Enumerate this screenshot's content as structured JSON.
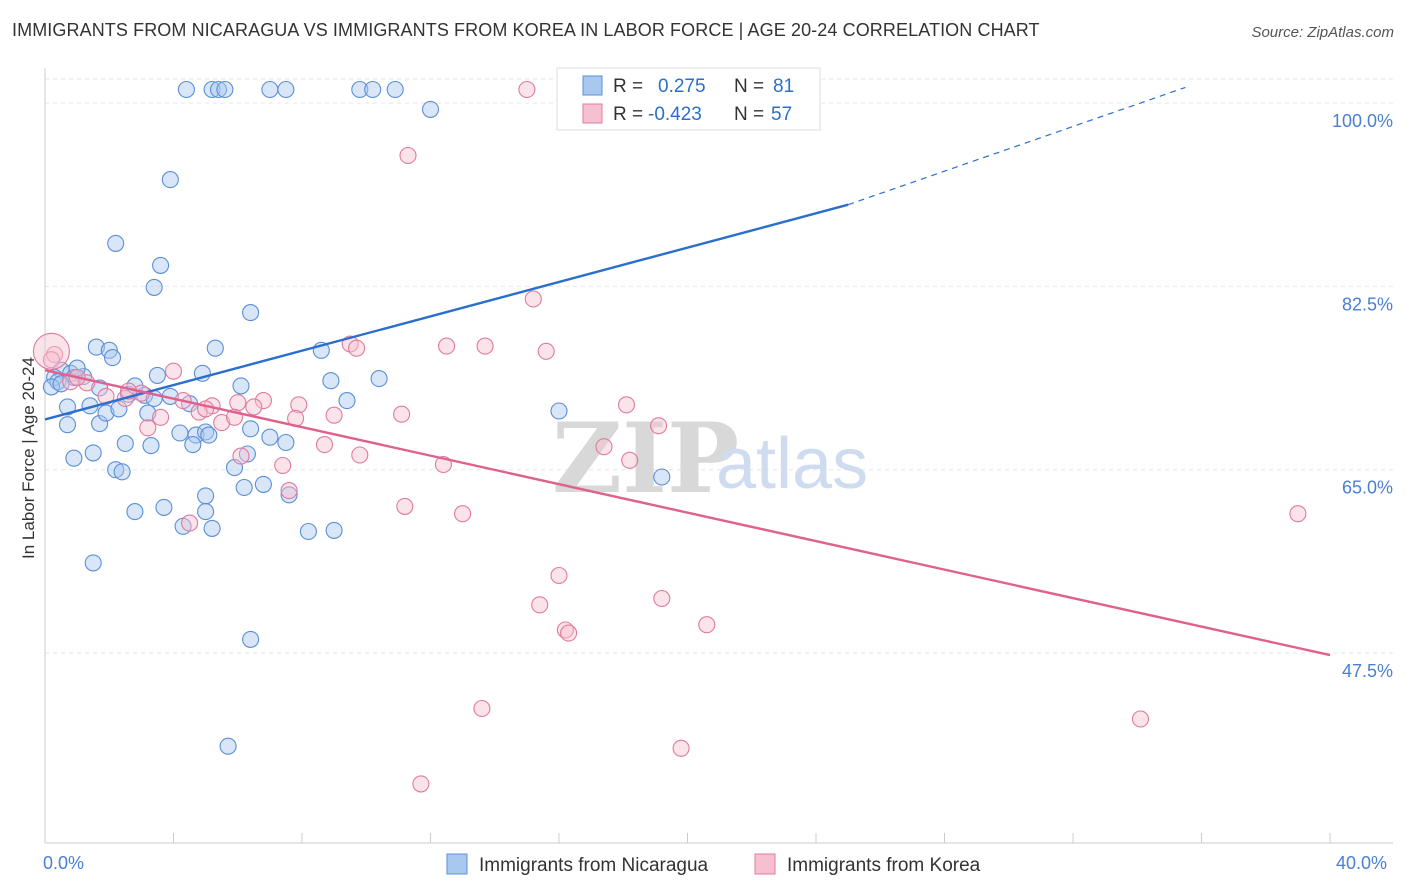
{
  "title": "IMMIGRANTS FROM NICARAGUA VS IMMIGRANTS FROM KOREA IN LABOR FORCE | AGE 20-24 CORRELATION CHART",
  "source": "Source: ZipAtlas.com",
  "watermark": {
    "zip": "ZIP",
    "atlas": "atlas"
  },
  "chart_data": {
    "type": "scatter",
    "xlabel": "",
    "ylabel": "In Labor Force | Age 20-24",
    "xlim": [
      0,
      40
    ],
    "ylim": [
      32,
      103.5
    ],
    "x_tick_labels": [
      "0.0%",
      "40.0%"
    ],
    "y_ticks": [
      47.5,
      65.0,
      82.5,
      100.0
    ],
    "y_tick_labels": [
      "47.5%",
      "65.0%",
      "82.5%",
      "100.0%"
    ],
    "grid": true,
    "legend_position": "top-center",
    "stats": [
      {
        "r_label": "R =",
        "r_value": "0.275",
        "n_label": "N =",
        "n_value": "81"
      },
      {
        "r_label": "R =",
        "r_value": "-0.423",
        "n_label": "N =",
        "n_value": "57"
      }
    ],
    "series": [
      {
        "name": "Immigrants from Nicaragua",
        "color": "#a8c8f0",
        "stroke": "#5b8fd8",
        "trend": {
          "x0": 0,
          "y0": 69.8,
          "x1": 25,
          "y1": 90.3,
          "x_dash_end": 35.5,
          "y_dash_end": 101.5,
          "color": "#2a6fce"
        },
        "points": [
          [
            4.4,
            101.3
          ],
          [
            5.2,
            101.3
          ],
          [
            5.4,
            101.3
          ],
          [
            5.6,
            101.3
          ],
          [
            7.0,
            101.3
          ],
          [
            7.5,
            101.3
          ],
          [
            9.8,
            101.3
          ],
          [
            10.2,
            101.3
          ],
          [
            10.9,
            101.3
          ],
          [
            12.0,
            99.4
          ],
          [
            3.9,
            92.7
          ],
          [
            2.2,
            86.6
          ],
          [
            3.6,
            84.5
          ],
          [
            3.4,
            82.4
          ],
          [
            6.4,
            80.0
          ],
          [
            1.6,
            76.7
          ],
          [
            2.0,
            76.4
          ],
          [
            5.3,
            76.6
          ],
          [
            2.1,
            75.7
          ],
          [
            8.6,
            76.4
          ],
          [
            0.5,
            74.5
          ],
          [
            0.8,
            74.2
          ],
          [
            0.3,
            73.8
          ],
          [
            1.2,
            73.9
          ],
          [
            4.9,
            74.2
          ],
          [
            0.4,
            73.4
          ],
          [
            0.9,
            73.8
          ],
          [
            6.1,
            73.0
          ],
          [
            3.5,
            74.0
          ],
          [
            8.9,
            73.5
          ],
          [
            10.4,
            73.7
          ],
          [
            1.7,
            72.8
          ],
          [
            2.6,
            72.2
          ],
          [
            3.1,
            72.1
          ],
          [
            3.4,
            71.8
          ],
          [
            9.4,
            71.6
          ],
          [
            0.7,
            71.0
          ],
          [
            1.4,
            71.1
          ],
          [
            3.2,
            70.4
          ],
          [
            1.7,
            69.4
          ],
          [
            0.7,
            69.3
          ],
          [
            4.2,
            68.5
          ],
          [
            4.7,
            68.3
          ],
          [
            5.0,
            68.6
          ],
          [
            5.1,
            68.3
          ],
          [
            6.4,
            68.9
          ],
          [
            7.0,
            68.1
          ],
          [
            2.5,
            67.5
          ],
          [
            3.3,
            67.3
          ],
          [
            1.5,
            66.6
          ],
          [
            4.6,
            67.4
          ],
          [
            6.3,
            66.5
          ],
          [
            0.9,
            66.1
          ],
          [
            2.2,
            65.0
          ],
          [
            2.4,
            64.8
          ],
          [
            5.9,
            65.2
          ],
          [
            6.8,
            63.6
          ],
          [
            5.0,
            62.5
          ],
          [
            7.6,
            62.6
          ],
          [
            2.8,
            61.0
          ],
          [
            3.7,
            61.4
          ],
          [
            5.0,
            61.0
          ],
          [
            4.3,
            59.6
          ],
          [
            5.2,
            59.4
          ],
          [
            8.2,
            59.1
          ],
          [
            9.0,
            59.2
          ],
          [
            1.5,
            56.1
          ],
          [
            6.4,
            48.8
          ],
          [
            5.7,
            38.6
          ],
          [
            16.0,
            70.6
          ],
          [
            19.2,
            64.3
          ],
          [
            7.5,
            67.6
          ],
          [
            6.2,
            63.3
          ],
          [
            1.9,
            70.4
          ],
          [
            2.8,
            73.0
          ],
          [
            0.2,
            72.9
          ],
          [
            1.0,
            74.7
          ],
          [
            0.5,
            73.2
          ],
          [
            3.9,
            72.0
          ],
          [
            2.3,
            70.8
          ],
          [
            4.5,
            71.3
          ]
        ]
      },
      {
        "name": "Immigrants from Korea",
        "color": "#f7c0d0",
        "stroke": "#e07b9e",
        "trend": {
          "x0": 0,
          "y0": 74.5,
          "x1": 40,
          "y1": 47.3,
          "color": "#e0608e"
        },
        "points": [
          [
            15.0,
            101.3
          ],
          [
            11.3,
            95.0
          ],
          [
            15.2,
            81.3
          ],
          [
            9.5,
            77.0
          ],
          [
            9.7,
            76.6
          ],
          [
            12.5,
            76.8
          ],
          [
            13.7,
            76.8
          ],
          [
            15.6,
            76.3
          ],
          [
            0.3,
            76.0
          ],
          [
            4.0,
            74.4
          ],
          [
            0.8,
            73.4
          ],
          [
            1.3,
            73.3
          ],
          [
            1.9,
            72.0
          ],
          [
            2.5,
            71.8
          ],
          [
            3.0,
            72.3
          ],
          [
            4.3,
            71.6
          ],
          [
            5.2,
            71.1
          ],
          [
            6.0,
            71.4
          ],
          [
            6.8,
            71.6
          ],
          [
            7.9,
            71.2
          ],
          [
            9.0,
            70.2
          ],
          [
            11.1,
            70.3
          ],
          [
            18.1,
            71.2
          ],
          [
            5.5,
            69.5
          ],
          [
            3.2,
            69.0
          ],
          [
            4.8,
            70.5
          ],
          [
            5.9,
            70.0
          ],
          [
            7.8,
            69.9
          ],
          [
            19.1,
            69.2
          ],
          [
            8.7,
            67.4
          ],
          [
            12.4,
            65.5
          ],
          [
            17.4,
            67.2
          ],
          [
            18.2,
            65.9
          ],
          [
            9.8,
            66.4
          ],
          [
            6.1,
            66.3
          ],
          [
            7.4,
            65.4
          ],
          [
            11.2,
            61.5
          ],
          [
            13.0,
            60.8
          ],
          [
            7.6,
            63.0
          ],
          [
            4.5,
            59.9
          ],
          [
            16.0,
            54.9
          ],
          [
            15.4,
            52.1
          ],
          [
            16.2,
            49.7
          ],
          [
            16.3,
            49.4
          ],
          [
            19.2,
            52.7
          ],
          [
            20.6,
            50.2
          ],
          [
            13.6,
            42.2
          ],
          [
            39.0,
            60.8
          ],
          [
            34.1,
            41.2
          ],
          [
            19.8,
            38.4
          ],
          [
            11.7,
            35.0
          ],
          [
            2.6,
            72.5
          ],
          [
            1.0,
            73.8
          ],
          [
            3.6,
            70.0
          ],
          [
            6.5,
            71.0
          ],
          [
            5.0,
            70.8
          ],
          [
            0.2,
            75.5
          ]
        ]
      }
    ]
  }
}
